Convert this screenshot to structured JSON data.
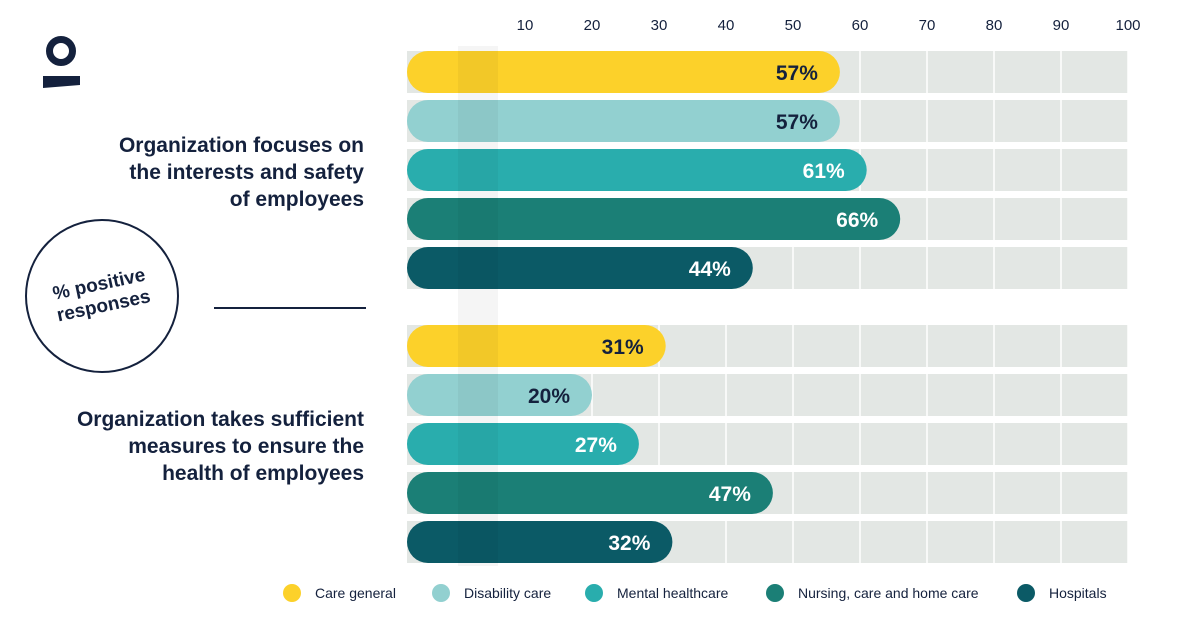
{
  "colors": {
    "care_general": "#fcd12a",
    "disability_care": "#92d0d0",
    "mental_healthcare": "#29adad",
    "nursing": "#1b7f76",
    "hospitals": "#0b5a66",
    "track": "#e3e7e4",
    "text_dark": "#14213d"
  },
  "logo_icon": "person-icon",
  "badge": {
    "line1": "% positive",
    "line2": "responses"
  },
  "groups": [
    {
      "line1": "Organization focuses on",
      "line2": "the interests and safety",
      "line3": "of employees"
    },
    {
      "line1": "Organization takes sufficient",
      "line2": "measures to ensure the",
      "line3": "health of employees"
    }
  ],
  "chart_data": {
    "type": "bar",
    "orientation": "horizontal",
    "x_ticks": [
      "10",
      "20",
      "30",
      "40",
      "50",
      "60",
      "70",
      "80",
      "90",
      "100"
    ],
    "xlim": [
      0,
      100
    ],
    "categories": [
      "Organization focuses on the interests and safety of employees",
      "Organization takes sufficient measures to ensure the health of employees"
    ],
    "series": [
      {
        "name": "Care general",
        "color": "#fcd12a",
        "values": [
          57,
          31
        ],
        "labels": [
          "57%",
          "31%"
        ],
        "label_color": "#14213d"
      },
      {
        "name": "Disability care",
        "color": "#92d0d0",
        "values": [
          57,
          20
        ],
        "labels": [
          "57%",
          "20%"
        ],
        "label_color": "#14213d"
      },
      {
        "name": "Mental healthcare",
        "color": "#29adad",
        "values": [
          61,
          27
        ],
        "labels": [
          "61%",
          "27%"
        ],
        "label_color": "#ffffff"
      },
      {
        "name": "Nursing, care and home care",
        "color": "#1b7f76",
        "values": [
          66,
          47
        ],
        "labels": [
          "66%",
          "47%"
        ],
        "label_color": "#ffffff"
      },
      {
        "name": "Hospitals",
        "color": "#0b5a66",
        "values": [
          44,
          32
        ],
        "labels": [
          "44%",
          "32%"
        ],
        "label_color": "#ffffff"
      }
    ],
    "legend_position": "bottom"
  }
}
